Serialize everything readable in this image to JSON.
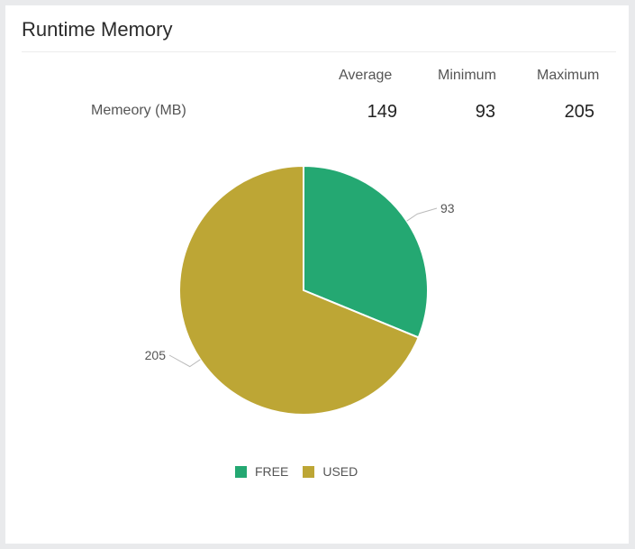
{
  "widget": {
    "title": "Runtime Memory"
  },
  "stats": {
    "headers": [
      "Average",
      "Minimum",
      "Maximum"
    ],
    "row_label": "Memeory (MB)",
    "values": [
      "149",
      "93",
      "205"
    ]
  },
  "legend": [
    {
      "label": "FREE",
      "color": "#24a872"
    },
    {
      "label": "USED",
      "color": "#bda635"
    }
  ],
  "chart_data": {
    "type": "pie",
    "slices": [
      {
        "label": "FREE",
        "value": 93,
        "color": "#24a872"
      },
      {
        "label": "USED",
        "value": 205,
        "color": "#bda635"
      }
    ],
    "data_labels": [
      "93",
      "205"
    ],
    "title": "",
    "legend_position": "bottom-center"
  }
}
